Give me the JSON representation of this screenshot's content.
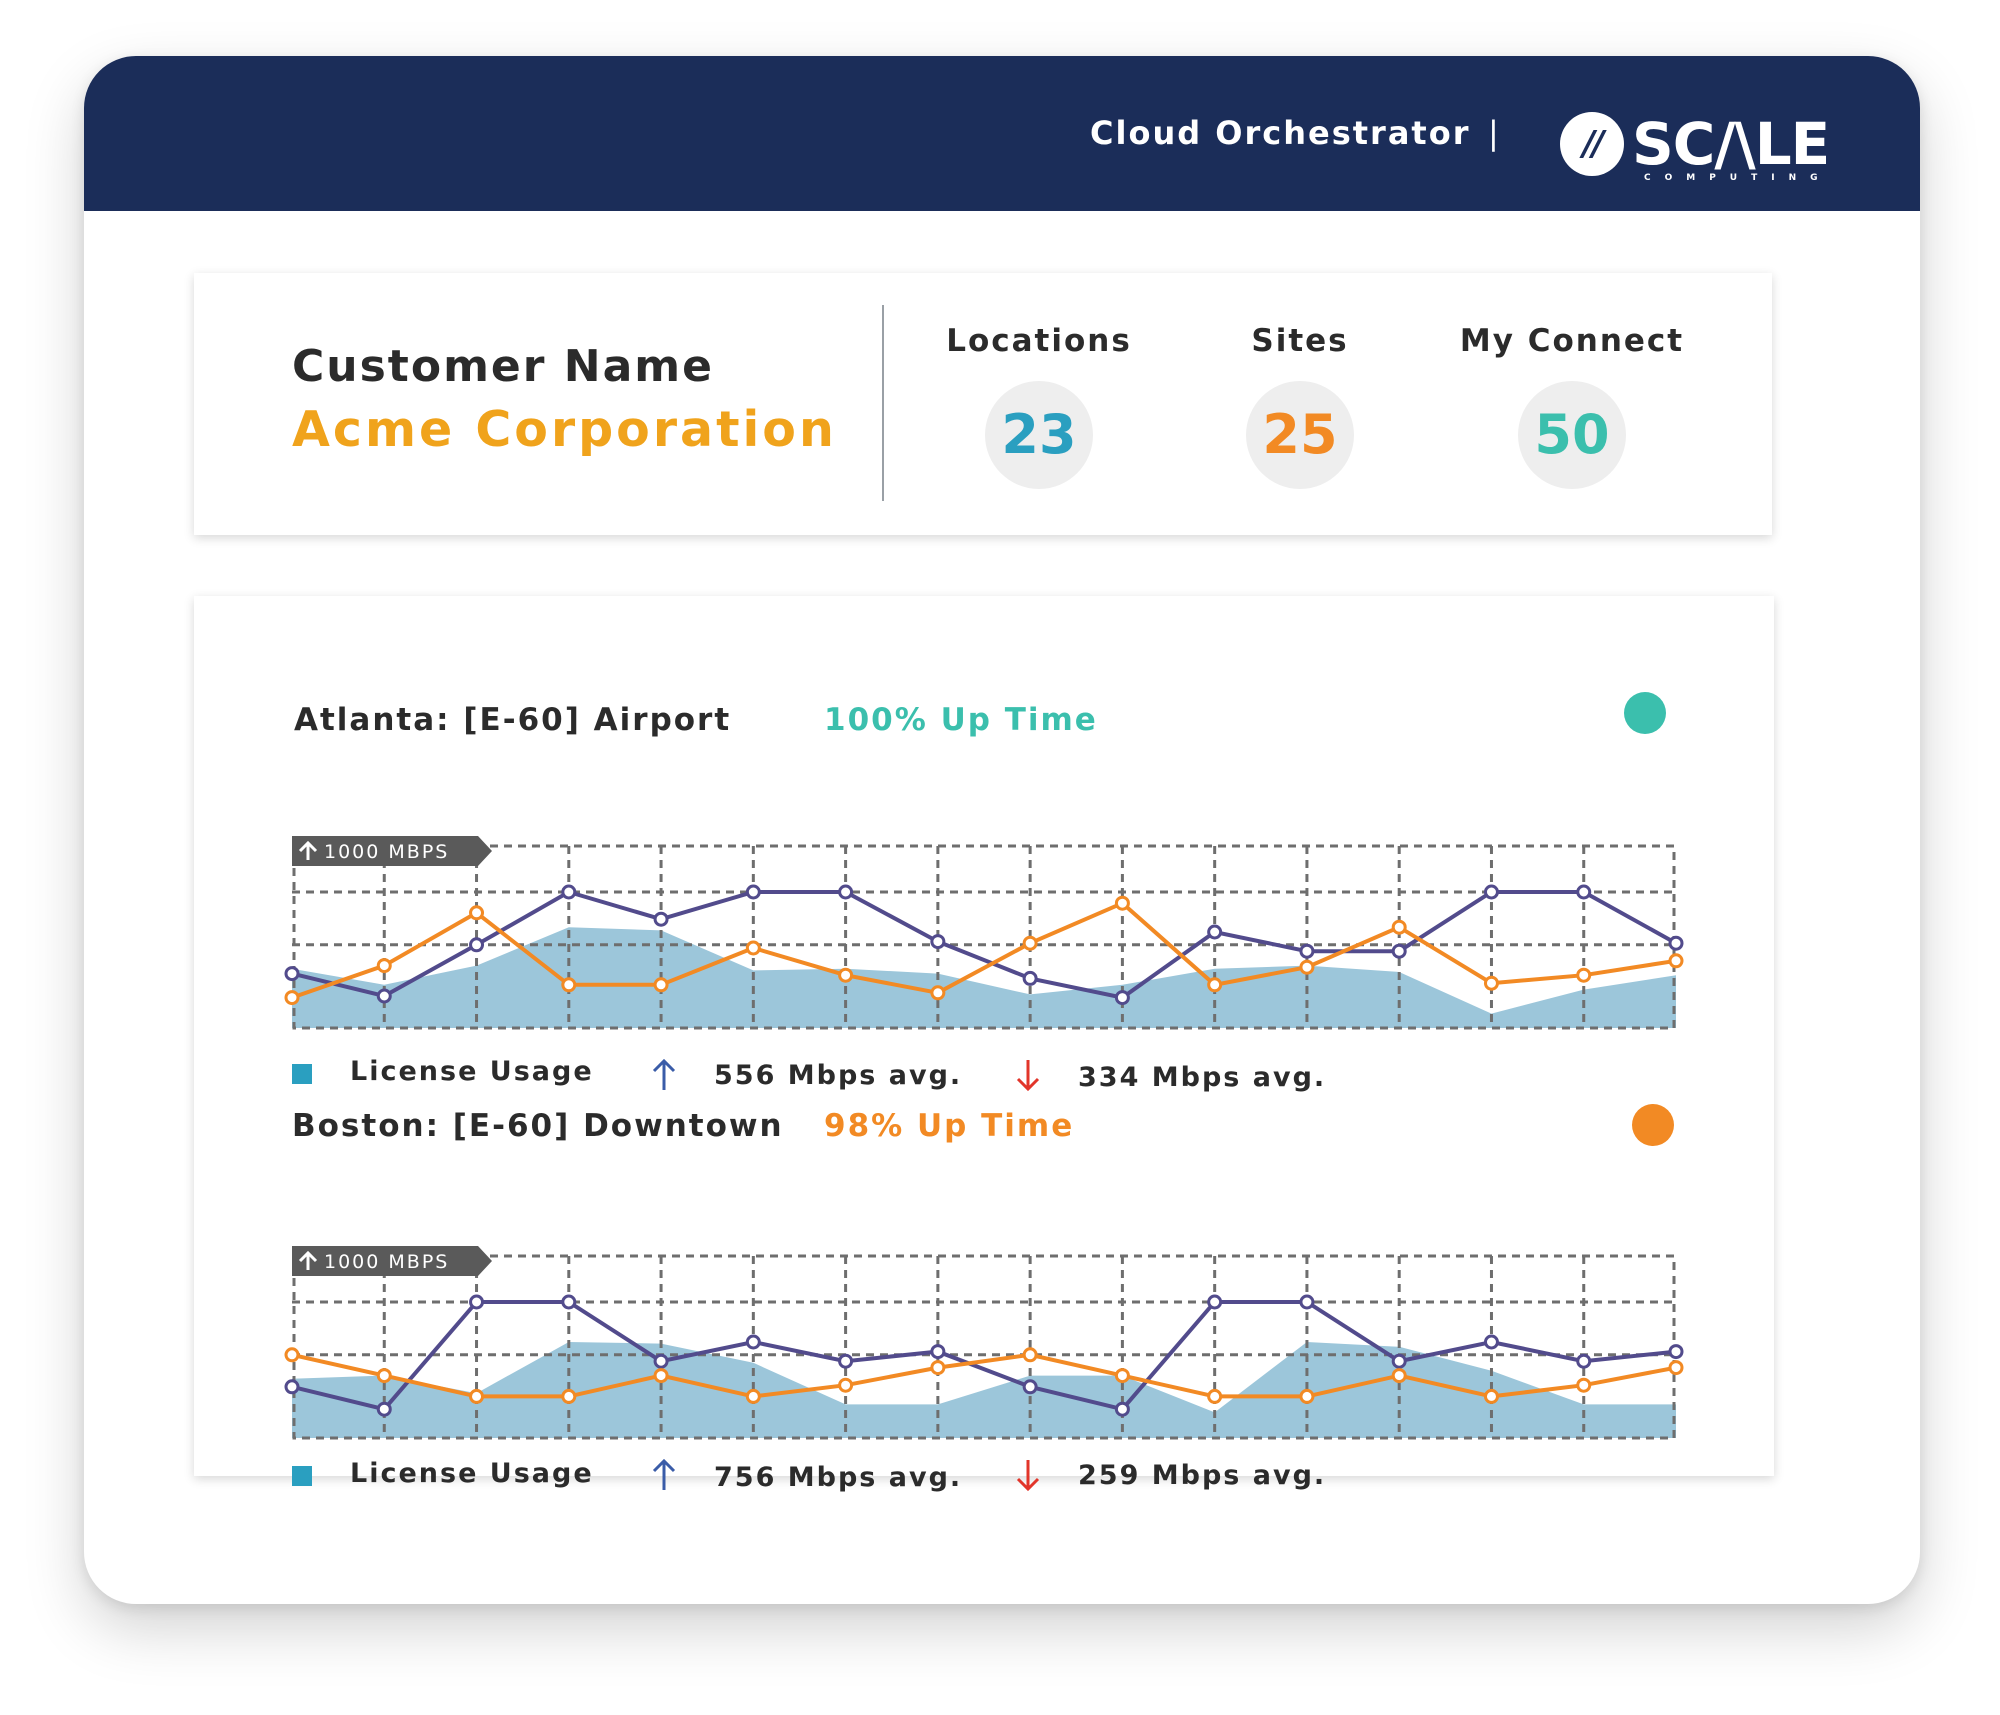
{
  "header": {
    "app_title": "Cloud Orchestrator",
    "divider": "|",
    "logo": {
      "mark": "//",
      "word": "SC/\\LE",
      "sub": "COMPUTING"
    }
  },
  "customer": {
    "label": "Customer Name",
    "name": "Acme Corporation",
    "stats": [
      {
        "label": "Locations",
        "value": "23",
        "color": "#2a9fc0"
      },
      {
        "label": "Sites",
        "value": "25",
        "color": "#f28a24"
      },
      {
        "label": "My Connect",
        "value": "50",
        "color": "#3bbfad"
      }
    ]
  },
  "colors": {
    "upload_line": "#524b8c",
    "download_line": "#f28a24",
    "license_area": "#9cc6da",
    "license_square": "#2a9fc0",
    "up_arrow": "#3a5ca8",
    "down_arrow": "#e2352a",
    "grid": "#6e6e6e",
    "max_badge": "#5a5a5a"
  },
  "sites": [
    {
      "title": "Atlanta: [E-60] Airport",
      "uptime": "100% Up Time",
      "uptime_color": "#3bbfad",
      "status_color": "#3bbfad",
      "legend_label": "License Usage",
      "up_avg": "556 Mbps avg.",
      "down_avg": "334 Mbps avg.",
      "chart_data": {
        "type": "line",
        "max_label": "1000 MBPS",
        "ylim": [
          0,
          1000
        ],
        "grid": true,
        "series": [
          {
            "values": [
              340,
              200,
              520,
              850,
              680,
              850,
              850,
              540,
              310,
              190,
              600,
              480,
              480,
              850,
              850,
              530
            ]
          },
          {
            "values": [
              190,
              390,
              720,
              270,
              270,
              500,
              330,
              220,
              530,
              780,
              270,
              380,
              630,
              280,
              330,
              420
            ]
          },
          {
            "values": [
              370,
              270,
              390,
              630,
              610,
              360,
              370,
              340,
              210,
              270,
              370,
              390,
              350,
              90,
              240,
              330
            ]
          }
        ]
      }
    },
    {
      "title": "Boston: [E-60] Downtown",
      "uptime": "98% Up Time",
      "uptime_color": "#f28a24",
      "status_color": "#f28a24",
      "legend_label": "License Usage",
      "up_avg": "756 Mbps avg.",
      "down_avg": "259 Mbps avg.",
      "chart_data": {
        "type": "line",
        "max_label": "1000 MBPS",
        "ylim": [
          0,
          1000
        ],
        "grid": true,
        "series": [
          {
            "values": [
              320,
              180,
              850,
              850,
              480,
              600,
              480,
              540,
              320,
              180,
              850,
              850,
              480,
              600,
              480,
              540
            ]
          },
          {
            "values": [
              520,
              390,
              260,
              260,
              390,
              260,
              330,
              440,
              520,
              390,
              260,
              260,
              390,
              260,
              330,
              440
            ]
          },
          {
            "values": [
              370,
              390,
              280,
              600,
              590,
              470,
              210,
              210,
              390,
              390,
              160,
              600,
              570,
              420,
              210,
              210
            ]
          }
        ]
      }
    }
  ]
}
